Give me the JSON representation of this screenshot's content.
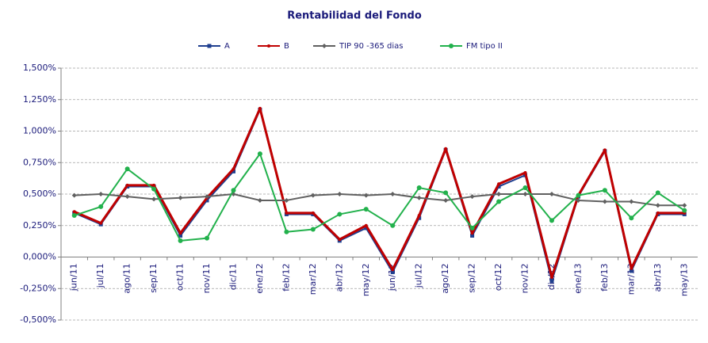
{
  "chart_data": {
    "type": "line",
    "title": "Rentabilidad del Fondo",
    "categories": [
      "jun/11",
      "jul/11",
      "ago/11",
      "sep/11",
      "oct/11",
      "nov/11",
      "dic/11",
      "ene/12",
      "feb/12",
      "mar/12",
      "abr/12",
      "may/12",
      "jun/12",
      "jul/12",
      "ago/12",
      "sep/12",
      "oct/12",
      "nov/12",
      "dic/12",
      "ene/13",
      "feb/13",
      "mar/13",
      "abr/13",
      "may/13"
    ],
    "series": [
      {
        "name": "A",
        "color": "#1f3f8f",
        "marker": "square",
        "values": [
          0.35,
          0.26,
          0.56,
          0.56,
          0.17,
          0.45,
          0.68,
          1.17,
          0.34,
          0.34,
          0.13,
          0.23,
          -0.12,
          0.31,
          0.85,
          0.17,
          0.56,
          0.65,
          -0.19,
          0.48,
          0.84,
          -0.11,
          0.34,
          0.34
        ]
      },
      {
        "name": "B",
        "color": "#c00000",
        "marker": "dot",
        "values": [
          0.36,
          0.27,
          0.57,
          0.57,
          0.19,
          0.47,
          0.7,
          1.18,
          0.35,
          0.35,
          0.14,
          0.25,
          -0.1,
          0.33,
          0.86,
          0.19,
          0.58,
          0.67,
          -0.16,
          0.49,
          0.85,
          -0.09,
          0.35,
          0.35
        ]
      },
      {
        "name": "TIP 90 -365 dias",
        "color": "#606060",
        "marker": "diamond",
        "values": [
          0.49,
          0.5,
          0.48,
          0.46,
          0.47,
          0.48,
          0.5,
          0.45,
          0.45,
          0.49,
          0.5,
          0.49,
          0.5,
          0.47,
          0.45,
          0.48,
          0.5,
          0.5,
          0.5,
          0.45,
          0.44,
          0.44,
          0.41,
          0.41
        ]
      },
      {
        "name": "FM tipo II",
        "color": "#22b14c",
        "marker": "circle",
        "values": [
          0.33,
          0.4,
          0.7,
          0.54,
          0.13,
          0.15,
          0.53,
          0.82,
          0.2,
          0.22,
          0.34,
          0.38,
          0.25,
          0.55,
          0.51,
          0.23,
          0.44,
          0.55,
          0.29,
          0.49,
          0.53,
          0.31,
          0.51,
          0.37
        ]
      }
    ],
    "ylim": [
      -0.5,
      1.5
    ],
    "yticks": [
      {
        "value": -0.5,
        "label": "-0,500%"
      },
      {
        "value": -0.25,
        "label": "-0,250%"
      },
      {
        "value": 0,
        "label": "0,000%"
      },
      {
        "value": 0.25,
        "label": "0,250%"
      },
      {
        "value": 0.5,
        "label": "0,500%"
      },
      {
        "value": 0.75,
        "label": "0,750%"
      },
      {
        "value": 1,
        "label": "1,000%"
      },
      {
        "value": 1.25,
        "label": "1,250%"
      },
      {
        "value": 1.5,
        "label": "1,500%"
      }
    ],
    "grid": true,
    "legend": "top"
  }
}
